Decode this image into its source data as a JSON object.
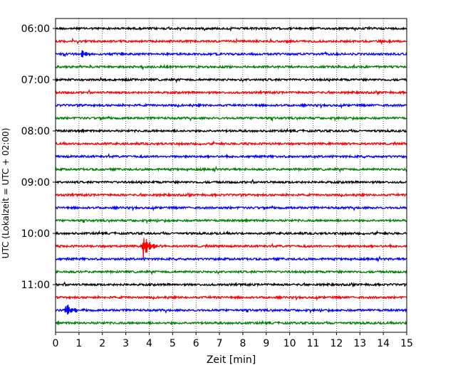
{
  "chart_data": {
    "type": "line",
    "title": "",
    "xlabel": "Zeit  [min]",
    "ylabel": "UTC (Lokalzeit = UTC + 02:00)",
    "xlim": [
      0,
      15
    ],
    "x_ticks": [
      "0",
      "1",
      "2",
      "3",
      "4",
      "5",
      "6",
      "7",
      "8",
      "9",
      "10",
      "11",
      "12",
      "13",
      "14",
      "15"
    ],
    "y_tick_labels": [
      "06:00",
      "07:00",
      "08:00",
      "09:00",
      "10:00",
      "11:00"
    ],
    "grid": "vertical dotted lines at each minute",
    "trace_interval_min": 15,
    "trace_start": "06:00",
    "trace_colors": [
      "#000000",
      "#ff0000",
      "#0000ff",
      "#008000"
    ],
    "traces": [
      {
        "start": "06:00",
        "color": "#000000",
        "events": []
      },
      {
        "start": "06:15",
        "color": "#ff0000",
        "events": []
      },
      {
        "start": "06:30",
        "color": "#0000ff",
        "events": [
          {
            "t_min": 1.1,
            "amplitude": 0.35
          }
        ]
      },
      {
        "start": "06:45",
        "color": "#008000",
        "events": []
      },
      {
        "start": "07:00",
        "color": "#000000",
        "events": []
      },
      {
        "start": "07:15",
        "color": "#ff0000",
        "events": []
      },
      {
        "start": "07:30",
        "color": "#0000ff",
        "events": []
      },
      {
        "start": "07:45",
        "color": "#008000",
        "events": []
      },
      {
        "start": "08:00",
        "color": "#000000",
        "events": []
      },
      {
        "start": "08:15",
        "color": "#ff0000",
        "events": []
      },
      {
        "start": "08:30",
        "color": "#0000ff",
        "events": []
      },
      {
        "start": "08:45",
        "color": "#008000",
        "events": []
      },
      {
        "start": "09:00",
        "color": "#000000",
        "events": []
      },
      {
        "start": "09:15",
        "color": "#ff0000",
        "events": []
      },
      {
        "start": "09:30",
        "color": "#0000ff",
        "events": []
      },
      {
        "start": "09:45",
        "color": "#008000",
        "events": []
      },
      {
        "start": "10:00",
        "color": "#000000",
        "events": []
      },
      {
        "start": "10:15",
        "color": "#ff0000",
        "events": [
          {
            "t_min": 3.75,
            "amplitude": 1.0
          }
        ]
      },
      {
        "start": "10:30",
        "color": "#0000ff",
        "events": []
      },
      {
        "start": "10:45",
        "color": "#008000",
        "events": []
      },
      {
        "start": "11:00",
        "color": "#000000",
        "events": []
      },
      {
        "start": "11:15",
        "color": "#ff0000",
        "events": []
      },
      {
        "start": "11:30",
        "color": "#0000ff",
        "events": [
          {
            "t_min": 0.42,
            "amplitude": 0.65
          }
        ]
      },
      {
        "start": "11:45",
        "color": "#008000",
        "events": []
      }
    ]
  }
}
